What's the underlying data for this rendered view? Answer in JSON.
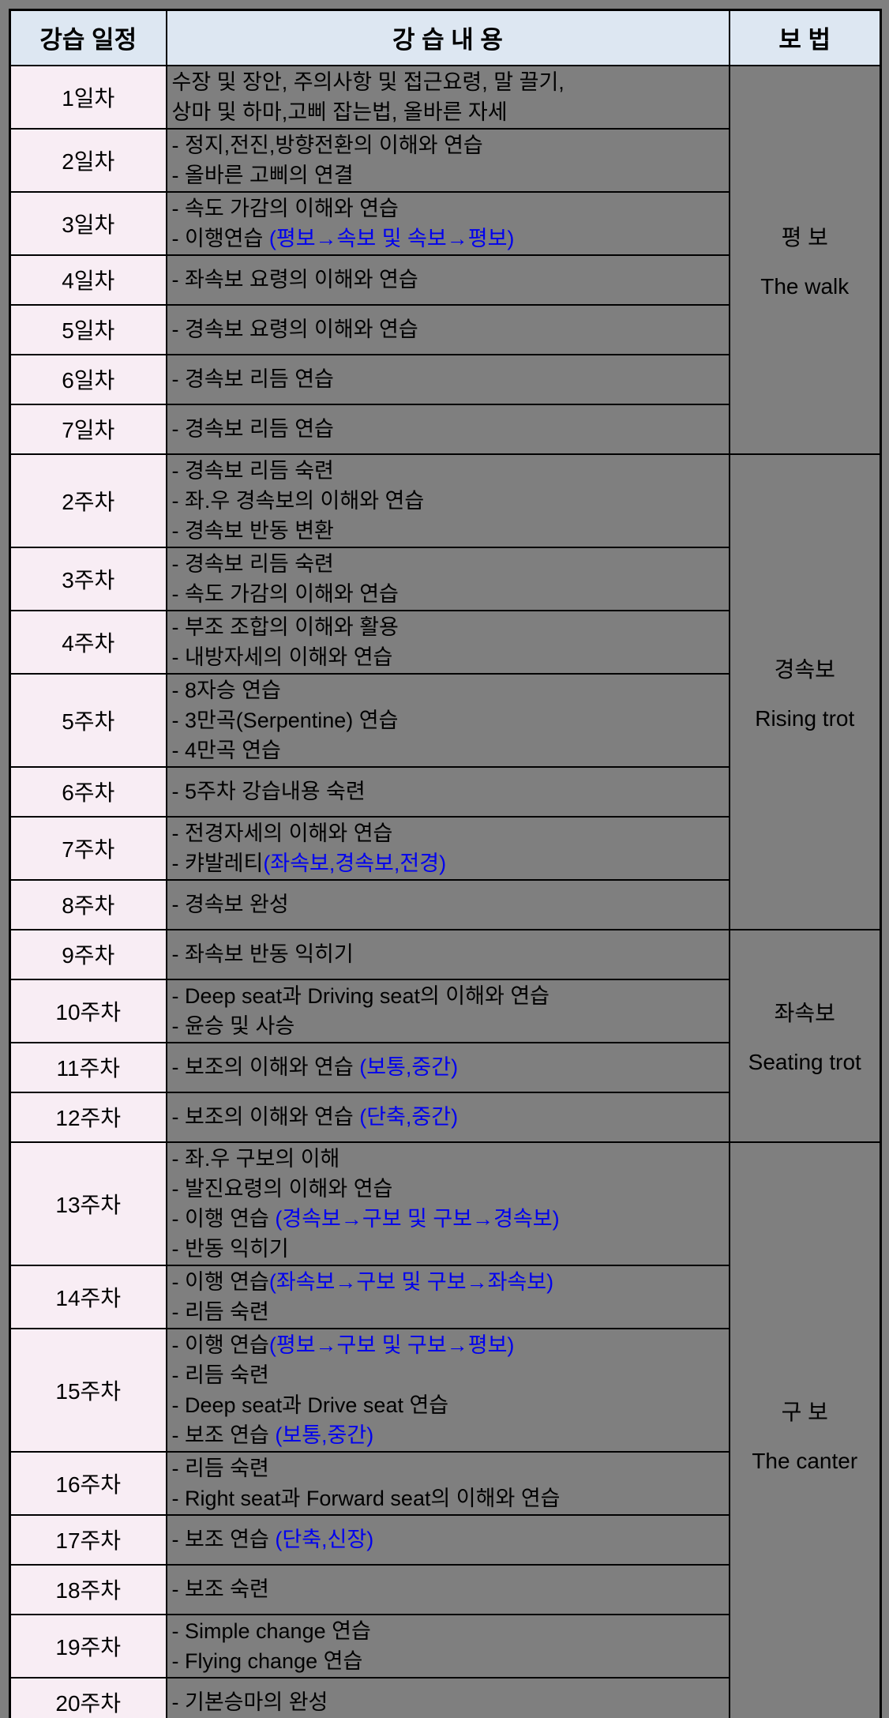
{
  "colors": {
    "page_background": "#7f7f7f",
    "header_background": "#dde7f2",
    "day_column_background": "#f8edf4",
    "content_background": "#7f7f7f",
    "highlight_blue": "#0000ee",
    "border": "#000000",
    "text": "#000000"
  },
  "table": {
    "headers": {
      "schedule": "강습 일정",
      "content": "강 습 내 용",
      "gait": "보 법"
    },
    "rows": [
      {
        "day": "1일차",
        "lines": [
          [
            {
              "t": "수장 및 장안, 주의사항 및 접근요령, 말 끌기,"
            }
          ],
          [
            {
              "t": "상마 및 하마,고삐 잡는법, 올바른 자세"
            }
          ]
        ]
      },
      {
        "day": "2일차",
        "lines": [
          [
            {
              "t": "- 정지,전진,방향전환의 이해와 연습"
            }
          ],
          [
            {
              "t": "- 올바른 고삐의 연결"
            }
          ]
        ]
      },
      {
        "day": "3일차",
        "lines": [
          [
            {
              "t": "- 속도 가감의 이해와 연습"
            }
          ],
          [
            {
              "t": "- 이행연습 "
            },
            {
              "t": "(평보→속보 및 속보→평보)",
              "blue": true
            }
          ]
        ]
      },
      {
        "day": "4일차",
        "lines": [
          [
            {
              "t": "- 좌속보 요령의 이해와 연습"
            }
          ]
        ]
      },
      {
        "day": "5일차",
        "lines": [
          [
            {
              "t": "- 경속보 요령의 이해와 연습"
            }
          ]
        ]
      },
      {
        "day": "6일차",
        "lines": [
          [
            {
              "t": "- 경속보 리듬 연습"
            }
          ]
        ]
      },
      {
        "day": "7일차",
        "lines": [
          [
            {
              "t": "- 경속보 리듬 연습"
            }
          ]
        ]
      },
      {
        "day": "2주차",
        "lines": [
          [
            {
              "t": "- 경속보 리듬 숙련"
            }
          ],
          [
            {
              "t": "- 좌.우 경속보의 이해와 연습"
            }
          ],
          [
            {
              "t": "- 경속보 반동 변환"
            }
          ]
        ]
      },
      {
        "day": "3주차",
        "lines": [
          [
            {
              "t": "- 경속보 리듬 숙련"
            }
          ],
          [
            {
              "t": "- 속도 가감의 이해와 연습"
            }
          ]
        ]
      },
      {
        "day": "4주차",
        "lines": [
          [
            {
              "t": "- 부조 조합의 이해와 활용"
            }
          ],
          [
            {
              "t": "- 내방자세의 이해와 연습"
            }
          ]
        ]
      },
      {
        "day": "5주차",
        "lines": [
          [
            {
              "t": "- 8자승 연습"
            }
          ],
          [
            {
              "t": "- 3만곡(Serpentine) 연습"
            }
          ],
          [
            {
              "t": "- 4만곡 연습"
            }
          ]
        ]
      },
      {
        "day": "6주차",
        "lines": [
          [
            {
              "t": "- 5주차 강습내용 숙련"
            }
          ]
        ]
      },
      {
        "day": "7주차",
        "lines": [
          [
            {
              "t": "- 전경자세의 이해와 연습"
            }
          ],
          [
            {
              "t": "- 캬발레티"
            },
            {
              "t": "(좌속보,경속보,전경)",
              "blue": true
            }
          ]
        ]
      },
      {
        "day": "8주차",
        "lines": [
          [
            {
              "t": "- 경속보 완성"
            }
          ]
        ]
      },
      {
        "day": "9주차",
        "lines": [
          [
            {
              "t": "- 좌속보 반동 익히기"
            }
          ]
        ]
      },
      {
        "day": "10주차",
        "lines": [
          [
            {
              "t": "- Deep seat과 Driving seat의 이해와 연습"
            }
          ],
          [
            {
              "t": "- 윤승 및 사승"
            }
          ]
        ]
      },
      {
        "day": "11주차",
        "lines": [
          [
            {
              "t": "- 보조의 이해와 연습 "
            },
            {
              "t": "(보통,중간)",
              "blue": true
            }
          ]
        ]
      },
      {
        "day": "12주차",
        "lines": [
          [
            {
              "t": "- 보조의 이해와 연습 "
            },
            {
              "t": "(단축,중간)",
              "blue": true
            }
          ]
        ]
      },
      {
        "day": "13주차",
        "lines": [
          [
            {
              "t": "- 좌.우 구보의 이해"
            }
          ],
          [
            {
              "t": "- 발진요령의 이해와 연습"
            }
          ],
          [
            {
              "t": "- 이행 연습 "
            },
            {
              "t": "(경속보→구보 및 구보→경속보)",
              "blue": true
            }
          ],
          [
            {
              "t": "- 반동 익히기"
            }
          ]
        ]
      },
      {
        "day": "14주차",
        "lines": [
          [
            {
              "t": "- 이행 연습"
            },
            {
              "t": "(좌속보→구보 및 구보→좌속보)",
              "blue": true
            }
          ],
          [
            {
              "t": "- 리듬 숙련"
            }
          ]
        ]
      },
      {
        "day": "15주차",
        "lines": [
          [
            {
              "t": "- 이행 연습"
            },
            {
              "t": "(평보→구보 및 구보→평보)",
              "blue": true
            }
          ],
          [
            {
              "t": "- 리듬 숙련"
            }
          ],
          [
            {
              "t": "- Deep seat과 Drive seat 연습"
            }
          ],
          [
            {
              "t": "- 보조 연습 "
            },
            {
              "t": "(보통,중간)",
              "blue": true
            }
          ]
        ]
      },
      {
        "day": "16주차",
        "lines": [
          [
            {
              "t": "- 리듬 숙련"
            }
          ],
          [
            {
              "t": "- Right seat과 Forward seat의 이해와 연습"
            }
          ]
        ]
      },
      {
        "day": "17주차",
        "lines": [
          [
            {
              "t": "- 보조 연습 "
            },
            {
              "t": "(단축,신장)",
              "blue": true
            }
          ]
        ]
      },
      {
        "day": "18주차",
        "lines": [
          [
            {
              "t": "- 보조 숙련"
            }
          ]
        ]
      },
      {
        "day": "19주차",
        "lines": [
          [
            {
              "t": "- Simple change 연습"
            }
          ],
          [
            {
              "t": "- Flying change 연습"
            }
          ]
        ]
      },
      {
        "day": "20주차",
        "lines": [
          [
            {
              "t": "- 기본승마의 완성"
            }
          ]
        ]
      }
    ],
    "gaits": [
      {
        "kr": "평 보",
        "en": "The walk",
        "from": 0,
        "rows": 7
      },
      {
        "kr": "경속보",
        "en": "Rising trot",
        "from": 7,
        "rows": 7
      },
      {
        "kr": "좌속보",
        "en": "Seating trot",
        "from": 14,
        "rows": 4
      },
      {
        "kr": "구 보",
        "en": "The canter",
        "from": 18,
        "rows": 8
      }
    ]
  }
}
